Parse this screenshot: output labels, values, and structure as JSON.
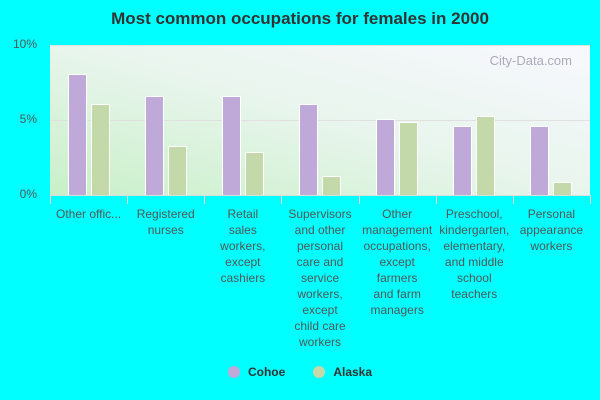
{
  "chart_data": {
    "type": "bar",
    "title": "Most common occupations for females in 2000",
    "xlabel": "",
    "ylabel": "",
    "ylim": [
      0,
      10
    ],
    "yticks": [
      "0%",
      "5%",
      "10%"
    ],
    "grid": true,
    "legend_position": "bottom",
    "categories": [
      "Other offic...",
      "Registered\nnurses",
      "Retail\nsales\nworkers,\nexcept\ncashiers",
      "Supervisors\nand other\npersonal\ncare and\nservice\nworkers,\nexcept\nchild care\nworkers",
      "Other\nmanagement\noccupations,\nexcept\nfarmers\nand farm\nmanagers",
      "Preschool,\nkindergarten,\nelementary,\nand middle\nschool\nteachers",
      "Personal\nappearance\nworkers"
    ],
    "series": [
      {
        "name": "Cohoe",
        "color": "#bfa9d9",
        "values": [
          8.1,
          6.6,
          6.6,
          6.1,
          5.1,
          4.6,
          4.6
        ]
      },
      {
        "name": "Alaska",
        "color": "#c4d9a9",
        "values": [
          6.1,
          3.3,
          2.9,
          1.3,
          4.9,
          5.3,
          0.9
        ]
      }
    ],
    "watermark": "City-Data.com"
  }
}
